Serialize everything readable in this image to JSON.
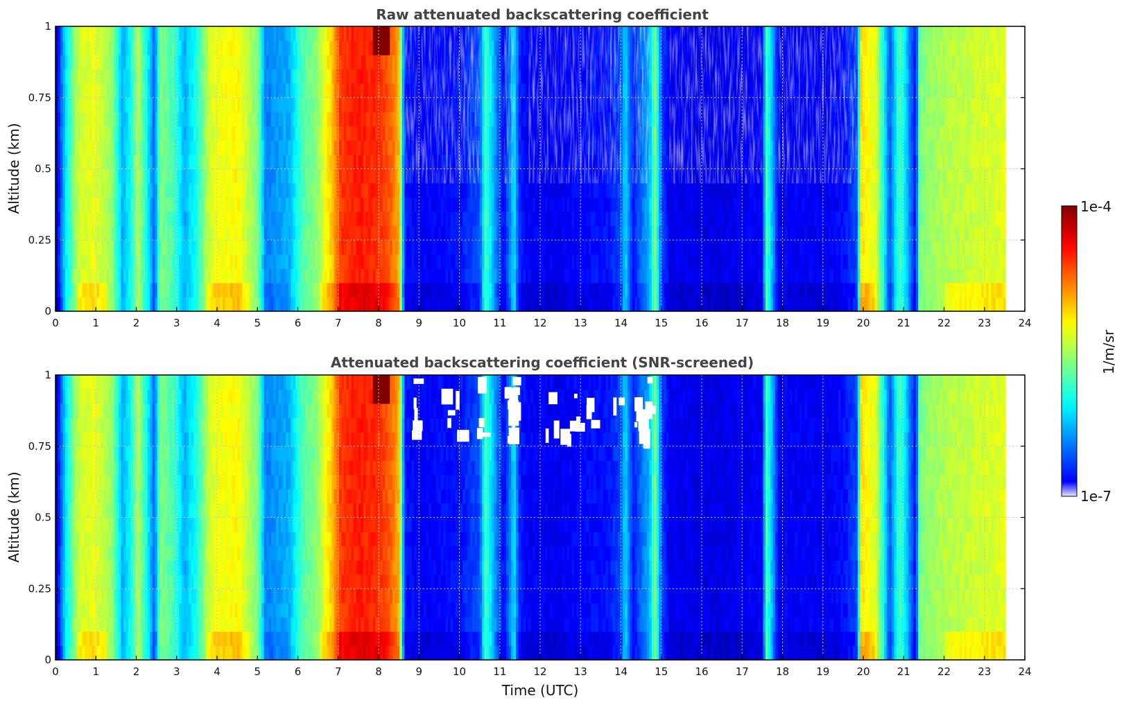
{
  "chart_data": [
    {
      "type": "heatmap",
      "title": "Raw attenuated backscattering coefficient",
      "ylabel": "Altitude (km)",
      "xlabel": "",
      "xlim": [
        0,
        24
      ],
      "ylim": [
        0,
        1
      ],
      "xticks": [
        "0",
        "1",
        "2",
        "3",
        "4",
        "5",
        "6",
        "7",
        "8",
        "9",
        "10",
        "11",
        "12",
        "13",
        "14",
        "15",
        "16",
        "17",
        "18",
        "19",
        "20",
        "21",
        "22",
        "23",
        "24"
      ],
      "yticks": [
        "0",
        "0.25",
        "0.5",
        "0.75",
        "1"
      ],
      "grid": true,
      "noise_upper_region": true,
      "screened": false
    },
    {
      "type": "heatmap",
      "title": "Attenuated backscattering coefficient (SNR-screened)",
      "ylabel": "Altitude (km)",
      "xlabel": "Time (UTC)",
      "xlim": [
        0,
        24
      ],
      "ylim": [
        0,
        1
      ],
      "xticks": [
        "0",
        "1",
        "2",
        "3",
        "4",
        "5",
        "6",
        "7",
        "8",
        "9",
        "10",
        "11",
        "12",
        "13",
        "14",
        "15",
        "16",
        "17",
        "18",
        "19",
        "20",
        "21",
        "22",
        "23",
        "24"
      ],
      "yticks": [
        "0",
        "0.25",
        "0.5",
        "0.75",
        "1"
      ],
      "grid": true,
      "noise_upper_region": false,
      "screened": true
    }
  ],
  "colorbar": {
    "label": "1/m/sr",
    "max_label": "1e-4",
    "min_label": "1e-7",
    "scale": "log",
    "range": [
      1e-07,
      0.0001
    ],
    "colormap": "jet"
  },
  "time_profile": [
    [
      0,
      0.05
    ],
    [
      0.2,
      0.3
    ],
    [
      0.45,
      0.5
    ],
    [
      0.6,
      0.58
    ],
    [
      1.0,
      0.6
    ],
    [
      1.4,
      0.52
    ],
    [
      1.65,
      0.3
    ],
    [
      1.85,
      0.38
    ],
    [
      2.05,
      0.55
    ],
    [
      2.25,
      0.4
    ],
    [
      2.45,
      0.22
    ],
    [
      2.6,
      0.5
    ],
    [
      2.9,
      0.45
    ],
    [
      3.2,
      0.3
    ],
    [
      3.5,
      0.4
    ],
    [
      3.75,
      0.55
    ],
    [
      3.9,
      0.6
    ],
    [
      4.5,
      0.63
    ],
    [
      5.0,
      0.5
    ],
    [
      5.2,
      0.25
    ],
    [
      5.8,
      0.3
    ],
    [
      6.1,
      0.45
    ],
    [
      6.5,
      0.52
    ],
    [
      6.7,
      0.62
    ],
    [
      6.85,
      0.68
    ],
    [
      7.05,
      0.82
    ],
    [
      7.5,
      0.85
    ],
    [
      8.0,
      0.83
    ],
    [
      8.3,
      0.78
    ],
    [
      8.5,
      0.7
    ],
    [
      8.65,
      0.15
    ],
    [
      9.0,
      0.12
    ],
    [
      10.0,
      0.14
    ],
    [
      10.5,
      0.2
    ],
    [
      10.65,
      0.45
    ],
    [
      10.85,
      0.3
    ],
    [
      11.1,
      0.12
    ],
    [
      11.35,
      0.35
    ],
    [
      11.5,
      0.15
    ],
    [
      11.7,
      0.12
    ],
    [
      12.5,
      0.11
    ],
    [
      13.0,
      0.13
    ],
    [
      13.7,
      0.14
    ],
    [
      14.0,
      0.2
    ],
    [
      14.1,
      0.35
    ],
    [
      14.3,
      0.15
    ],
    [
      14.7,
      0.3
    ],
    [
      14.85,
      0.5
    ],
    [
      15.0,
      0.2
    ],
    [
      15.2,
      0.11
    ],
    [
      16.5,
      0.1
    ],
    [
      17.5,
      0.12
    ],
    [
      17.6,
      0.45
    ],
    [
      17.75,
      0.3
    ],
    [
      17.9,
      0.12
    ],
    [
      19.0,
      0.11
    ],
    [
      19.5,
      0.13
    ],
    [
      19.85,
      0.2
    ],
    [
      19.95,
      0.65
    ],
    [
      20.3,
      0.6
    ],
    [
      20.5,
      0.4
    ],
    [
      20.65,
      0.2
    ],
    [
      20.9,
      0.45
    ],
    [
      21.1,
      0.3
    ],
    [
      21.3,
      0.12
    ],
    [
      21.4,
      0.5
    ],
    [
      22.0,
      0.55
    ],
    [
      23.0,
      0.58
    ],
    [
      23.5,
      0.6
    ]
  ],
  "data_end_hour": 23.5
}
